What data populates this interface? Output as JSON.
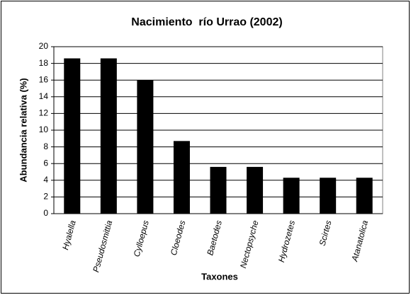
{
  "chart_data": {
    "type": "bar",
    "title": "Nacimiento  río Urrao (2002)",
    "x_label": "Taxones",
    "y_label": "Abundancia relativa (%)",
    "categories": [
      "Hyalella",
      "Pseudosmittia",
      "Cylloepus",
      "Cloeodes",
      "Baetodes",
      "Nectopsyche",
      "Hydrozetes",
      "Scirtes",
      "Atanatolica"
    ],
    "values": [
      18.6,
      18.6,
      16.0,
      8.7,
      5.6,
      5.6,
      4.3,
      4.3,
      4.3
    ],
    "color": "#000000",
    "ylim": [
      0,
      20
    ],
    "yticks": [
      0,
      2,
      4,
      6,
      8,
      10,
      12,
      14,
      16,
      18,
      20
    ],
    "grid": true
  }
}
